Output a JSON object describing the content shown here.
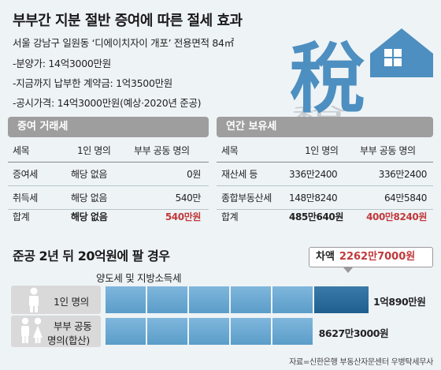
{
  "title": "부부간 지분 절반 증여에 따른 절세 효과",
  "info": {
    "line1": "서울 강남구 일원동 ‘디에이치자이 개포’ 전용면적 84㎡",
    "line2": "-분양가: 14억3000만원",
    "line3": "-지금까지 납부한 계약금: 1억3500만원",
    "line4": "-공시가격: 14억3000만원(예상·2020년 준공)"
  },
  "graphic": {
    "character": "稅",
    "icon": "house-tax-icon"
  },
  "gift_table": {
    "heading": "증여 거래세",
    "columns": [
      "세목",
      "1인 명의",
      "부부 공동 명의"
    ],
    "rows": [
      [
        "증여세",
        "해당 없음",
        "0원"
      ],
      [
        "취득세",
        "해당 없음",
        "540만"
      ]
    ],
    "total": [
      "합계",
      "해당 없음",
      "540만원"
    ]
  },
  "holding_table": {
    "heading": "연간 보유세",
    "columns": [
      "세목",
      "1인 명의",
      "부부 공동 명의"
    ],
    "rows": [
      [
        "재산세 등",
        "336만2400",
        "336만2400"
      ],
      [
        "종합부동산세",
        "148만8240",
        "64만5840"
      ]
    ],
    "total": [
      "합계",
      "485만640원",
      "400만8240원"
    ]
  },
  "scenario": {
    "title": "준공 2년 뒤 20억원에 팔 경우",
    "tax_label": "양도세 및 지방소득세",
    "difference_label": "차액",
    "difference_value": "2262만7000원",
    "single": {
      "label": "1인 명의",
      "value": "1억890만원",
      "amount_won": 108900000
    },
    "joint": {
      "label_line1": "부부 공동",
      "label_line2": "명의(합산)",
      "value": "8627만3000원",
      "amount_won": 86273000
    }
  },
  "colors": {
    "bar_primary": "#5a9dc9",
    "bar_difference": "#1f5f8f",
    "accent_red": "#c0393b",
    "table_header": "#9e9e9e"
  },
  "source": "자료=신한은행 부동산자문센터 우병탁세무사"
}
